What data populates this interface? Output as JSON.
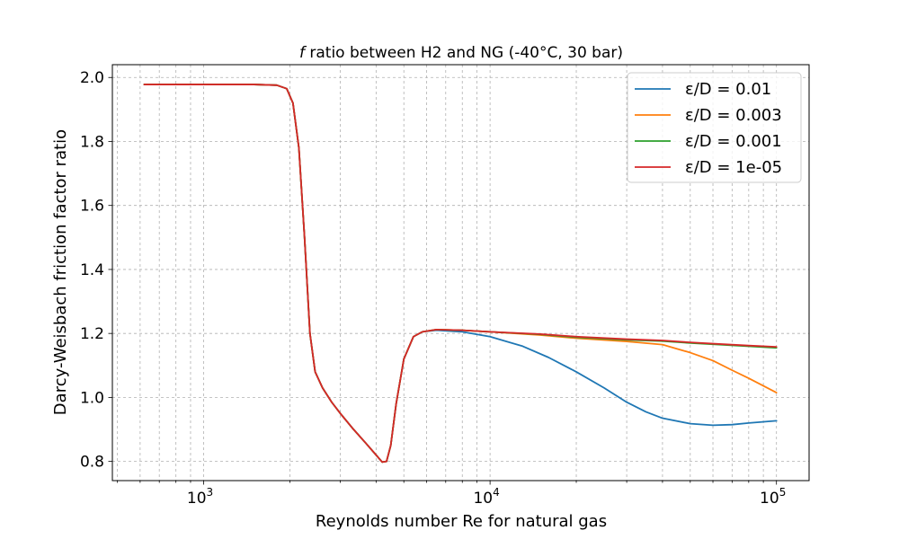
{
  "chart_data": {
    "type": "line",
    "title_italic": "f",
    "title_rest": " ratio between H2 and NG (-40°C, 30 bar)",
    "xlabel": "Reynolds number Re for natural gas",
    "ylabel": "Darcy-Weisbach friction factor ratio",
    "xscale": "log",
    "xlim": [
      480,
      130000
    ],
    "ylim": [
      0.74,
      2.04
    ],
    "grid": true,
    "grid_minor": true,
    "legend_position": "top-right",
    "x_ticks": [
      {
        "value": 1000,
        "base": "10",
        "exp": "3"
      },
      {
        "value": 10000,
        "base": "10",
        "exp": "4"
      },
      {
        "value": 100000,
        "base": "10",
        "exp": "5"
      }
    ],
    "y_ticks": [
      {
        "value": 0.8,
        "label": "0.8"
      },
      {
        "value": 1.0,
        "label": "1.0"
      },
      {
        "value": 1.2,
        "label": "1.2"
      },
      {
        "value": 1.4,
        "label": "1.4"
      },
      {
        "value": 1.6,
        "label": "1.6"
      },
      {
        "value": 1.8,
        "label": "1.8"
      },
      {
        "value": 2.0,
        "label": "2.0"
      }
    ],
    "series": [
      {
        "name": "ε/D = 0.01",
        "color": "#1f77b4",
        "points": [
          [
            620,
            1.978
          ],
          [
            1000,
            1.978
          ],
          [
            1500,
            1.978
          ],
          [
            1800,
            1.976
          ],
          [
            1950,
            1.965
          ],
          [
            2050,
            1.92
          ],
          [
            2150,
            1.78
          ],
          [
            2250,
            1.5
          ],
          [
            2350,
            1.2
          ],
          [
            2450,
            1.08
          ],
          [
            2600,
            1.03
          ],
          [
            2800,
            0.985
          ],
          [
            3000,
            0.95
          ],
          [
            3300,
            0.905
          ],
          [
            3700,
            0.855
          ],
          [
            4000,
            0.82
          ],
          [
            4200,
            0.798
          ],
          [
            4350,
            0.8
          ],
          [
            4500,
            0.85
          ],
          [
            4700,
            0.98
          ],
          [
            5000,
            1.12
          ],
          [
            5400,
            1.19
          ],
          [
            5800,
            1.205
          ],
          [
            6500,
            1.21
          ],
          [
            8000,
            1.205
          ],
          [
            10000,
            1.19
          ],
          [
            13000,
            1.16
          ],
          [
            16000,
            1.125
          ],
          [
            20000,
            1.08
          ],
          [
            25000,
            1.03
          ],
          [
            30000,
            0.985
          ],
          [
            35000,
            0.955
          ],
          [
            40000,
            0.935
          ],
          [
            50000,
            0.918
          ],
          [
            60000,
            0.913
          ],
          [
            70000,
            0.915
          ],
          [
            80000,
            0.92
          ],
          [
            100000,
            0.927
          ]
        ]
      },
      {
        "name": "ε/D = 0.003",
        "color": "#ff7f0e",
        "points": [
          [
            620,
            1.978
          ],
          [
            1000,
            1.978
          ],
          [
            1500,
            1.978
          ],
          [
            1800,
            1.976
          ],
          [
            1950,
            1.965
          ],
          [
            2050,
            1.92
          ],
          [
            2150,
            1.78
          ],
          [
            2250,
            1.5
          ],
          [
            2350,
            1.2
          ],
          [
            2450,
            1.08
          ],
          [
            2600,
            1.03
          ],
          [
            2800,
            0.985
          ],
          [
            3000,
            0.95
          ],
          [
            3300,
            0.905
          ],
          [
            3700,
            0.855
          ],
          [
            4000,
            0.82
          ],
          [
            4200,
            0.798
          ],
          [
            4350,
            0.8
          ],
          [
            4500,
            0.85
          ],
          [
            4700,
            0.98
          ],
          [
            5000,
            1.12
          ],
          [
            5400,
            1.19
          ],
          [
            5800,
            1.205
          ],
          [
            6500,
            1.212
          ],
          [
            8000,
            1.21
          ],
          [
            10000,
            1.205
          ],
          [
            15000,
            1.195
          ],
          [
            20000,
            1.185
          ],
          [
            30000,
            1.175
          ],
          [
            40000,
            1.165
          ],
          [
            50000,
            1.14
          ],
          [
            60000,
            1.115
          ],
          [
            70000,
            1.085
          ],
          [
            80000,
            1.06
          ],
          [
            100000,
            1.015
          ]
        ]
      },
      {
        "name": "ε/D = 0.001",
        "color": "#2ca02c",
        "points": [
          [
            620,
            1.978
          ],
          [
            1000,
            1.978
          ],
          [
            1500,
            1.978
          ],
          [
            1800,
            1.976
          ],
          [
            1950,
            1.965
          ],
          [
            2050,
            1.92
          ],
          [
            2150,
            1.78
          ],
          [
            2250,
            1.5
          ],
          [
            2350,
            1.2
          ],
          [
            2450,
            1.08
          ],
          [
            2600,
            1.03
          ],
          [
            2800,
            0.985
          ],
          [
            3000,
            0.95
          ],
          [
            3300,
            0.905
          ],
          [
            3700,
            0.855
          ],
          [
            4000,
            0.82
          ],
          [
            4200,
            0.798
          ],
          [
            4350,
            0.8
          ],
          [
            4500,
            0.85
          ],
          [
            4700,
            0.98
          ],
          [
            5000,
            1.12
          ],
          [
            5400,
            1.19
          ],
          [
            5800,
            1.205
          ],
          [
            6500,
            1.212
          ],
          [
            8000,
            1.21
          ],
          [
            10000,
            1.205
          ],
          [
            15000,
            1.197
          ],
          [
            20000,
            1.188
          ],
          [
            30000,
            1.18
          ],
          [
            40000,
            1.176
          ],
          [
            50000,
            1.17
          ],
          [
            60000,
            1.166
          ],
          [
            80000,
            1.16
          ],
          [
            100000,
            1.155
          ]
        ]
      },
      {
        "name": "ε/D = 1e-05",
        "color": "#d62728",
        "points": [
          [
            620,
            1.978
          ],
          [
            1000,
            1.978
          ],
          [
            1500,
            1.978
          ],
          [
            1800,
            1.976
          ],
          [
            1950,
            1.965
          ],
          [
            2050,
            1.92
          ],
          [
            2150,
            1.78
          ],
          [
            2250,
            1.5
          ],
          [
            2350,
            1.2
          ],
          [
            2450,
            1.08
          ],
          [
            2600,
            1.03
          ],
          [
            2800,
            0.985
          ],
          [
            3000,
            0.95
          ],
          [
            3300,
            0.905
          ],
          [
            3700,
            0.855
          ],
          [
            4000,
            0.82
          ],
          [
            4200,
            0.798
          ],
          [
            4350,
            0.8
          ],
          [
            4500,
            0.85
          ],
          [
            4700,
            0.98
          ],
          [
            5000,
            1.12
          ],
          [
            5400,
            1.19
          ],
          [
            5800,
            1.205
          ],
          [
            6500,
            1.212
          ],
          [
            8000,
            1.21
          ],
          [
            10000,
            1.205
          ],
          [
            15000,
            1.198
          ],
          [
            20000,
            1.19
          ],
          [
            30000,
            1.182
          ],
          [
            40000,
            1.178
          ],
          [
            50000,
            1.172
          ],
          [
            60000,
            1.168
          ],
          [
            80000,
            1.162
          ],
          [
            100000,
            1.158
          ]
        ]
      }
    ]
  }
}
